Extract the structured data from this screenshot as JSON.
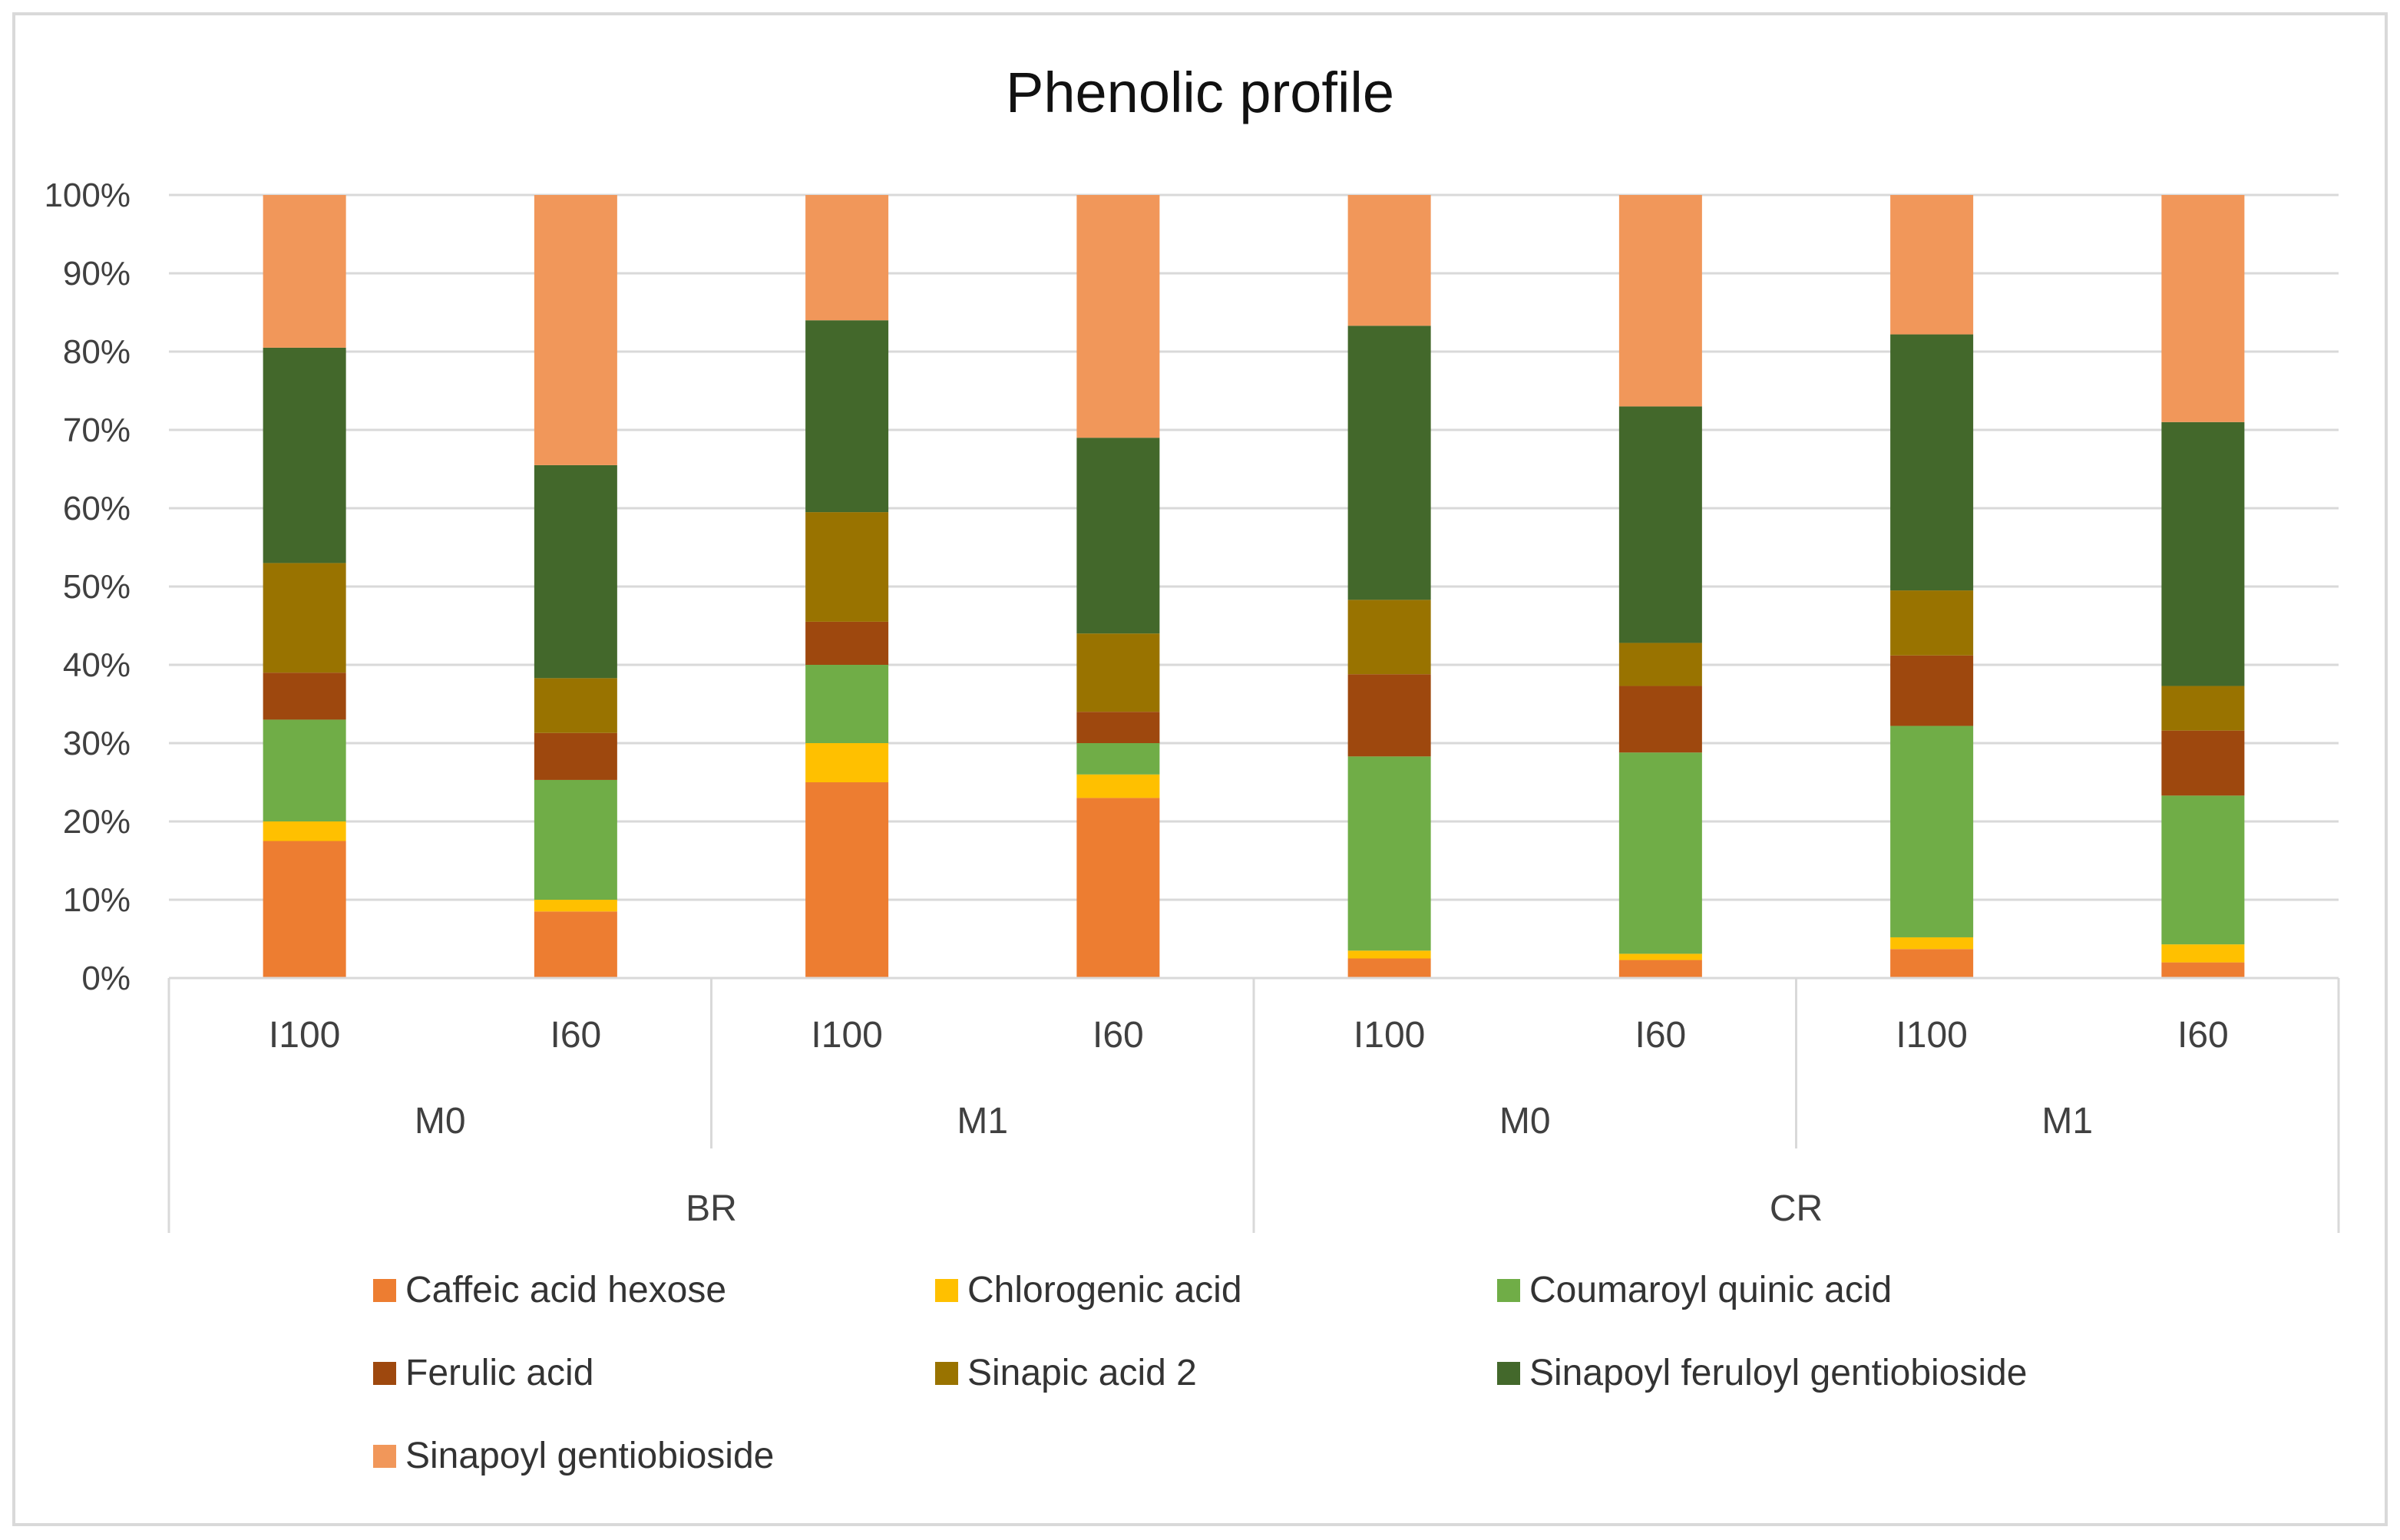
{
  "chart_data": {
    "type": "bar",
    "stacked": "percent",
    "title": "Phenolic profile",
    "xlabel": "",
    "ylabel": "",
    "ylim": [
      0,
      100
    ],
    "yticks": [
      "0%",
      "10%",
      "20%",
      "30%",
      "40%",
      "50%",
      "60%",
      "70%",
      "80%",
      "90%",
      "100%"
    ],
    "categories": [
      {
        "level1": "I100",
        "level2": "M0",
        "level3": "BR"
      },
      {
        "level1": "I60",
        "level2": "M0",
        "level3": "BR"
      },
      {
        "level1": "I100",
        "level2": "M1",
        "level3": "BR"
      },
      {
        "level1": "I60",
        "level2": "M1",
        "level3": "BR"
      },
      {
        "level1": "I100",
        "level2": "M0",
        "level3": "CR"
      },
      {
        "level1": "I60",
        "level2": "M0",
        "level3": "CR"
      },
      {
        "level1": "I100",
        "level2": "M1",
        "level3": "CR"
      },
      {
        "level1": "I60",
        "level2": "M1",
        "level3": "CR"
      }
    ],
    "group_labels_level2": [
      "M0",
      "M1",
      "M0",
      "M1"
    ],
    "group_labels_level3": [
      "BR",
      "CR"
    ],
    "series": [
      {
        "name": "Caffeic acid hexose",
        "color": "#ED7D31",
        "values": [
          17.5,
          8.5,
          25,
          23,
          2.5,
          2.3,
          3.7,
          2
        ]
      },
      {
        "name": "Chlorogenic acid",
        "color": "#FFC000",
        "values": [
          2.5,
          1.5,
          5,
          3,
          1,
          0.8,
          1.5,
          2.3
        ]
      },
      {
        "name": "Coumaroyl quinic acid",
        "color": "#70AD47",
        "values": [
          13,
          15.3,
          10,
          4,
          24.8,
          25.7,
          27,
          19
        ]
      },
      {
        "name": "Ferulic acid",
        "color": "#9E480E",
        "values": [
          6,
          6,
          5.5,
          4,
          10.5,
          8.5,
          9,
          8.3
        ]
      },
      {
        "name": "Sinapic acid 2",
        "color": "#997300",
        "values": [
          14,
          7,
          14,
          10,
          9.5,
          5.5,
          8.3,
          5.7
        ]
      },
      {
        "name": "Sinapoyl feruloyl gentiobioside",
        "color": "#43682B",
        "values": [
          27.5,
          27.2,
          24.5,
          25,
          35,
          30.2,
          32.7,
          33.7
        ]
      },
      {
        "name": "Sinapoyl gentiobioside",
        "color": "#F1975A",
        "values": [
          19.5,
          34.5,
          16,
          31,
          16.7,
          27,
          17.8,
          29
        ]
      }
    ]
  }
}
